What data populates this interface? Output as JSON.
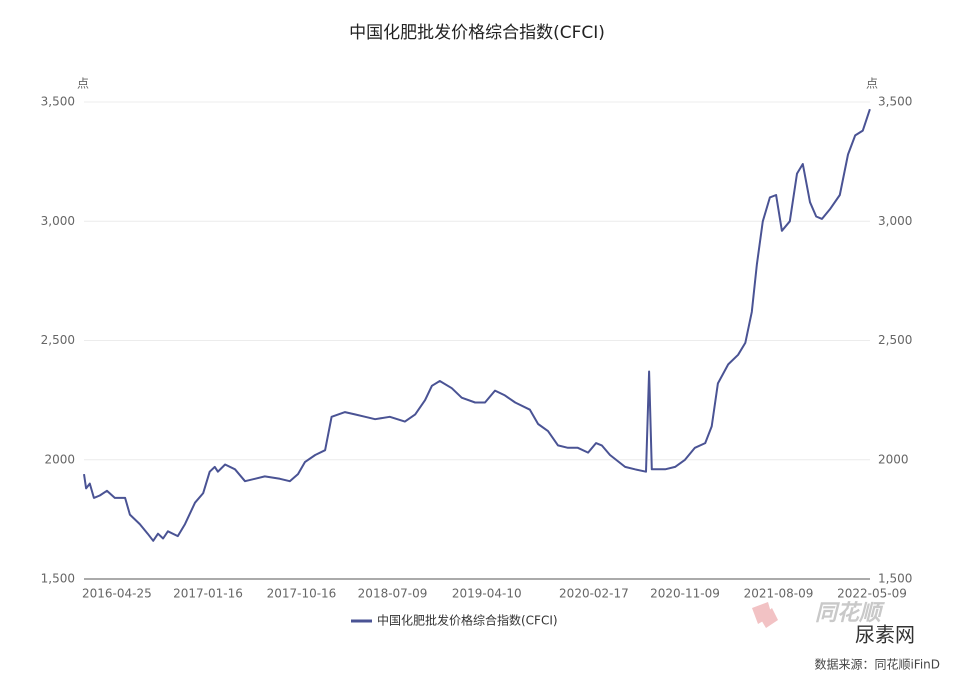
{
  "chart_data": {
    "type": "line",
    "title": "中国化肥批发价格综合指数(CFCI)",
    "y_label": "点",
    "y2_label": "点",
    "source": "数据来源：同花顺iFinD",
    "watermarks": [
      "同花顺",
      "尿素网"
    ],
    "x": [
      "2016-01-20",
      "2016-01-26",
      "2016-02-06",
      "2016-02-18",
      "2016-03-06",
      "2016-03-27",
      "2016-04-19",
      "2016-05-19",
      "2016-06-02",
      "2016-07-01",
      "2016-07-24",
      "2016-08-09",
      "2016-08-23",
      "2016-09-07",
      "2016-09-21",
      "2016-10-20",
      "2016-11-10",
      "2016-12-09",
      "2017-01-02",
      "2017-01-21",
      "2017-02-05",
      "2017-02-14",
      "2017-03-07",
      "2017-04-05",
      "2017-05-04",
      "2017-06-02",
      "2017-07-01",
      "2017-08-14",
      "2017-09-12",
      "2017-10-06",
      "2017-10-26",
      "2017-11-25",
      "2017-12-24",
      "2018-01-12",
      "2018-02-20",
      "2018-03-21",
      "2018-04-20",
      "2018-05-19",
      "2018-07-01",
      "2018-08-14",
      "2018-09-13",
      "2018-10-12",
      "2018-11-01",
      "2018-11-24",
      "2018-12-29",
      "2019-01-27",
      "2019-03-07",
      "2019-04-05",
      "2019-05-04",
      "2019-06-02",
      "2019-07-02",
      "2019-08-14",
      "2019-09-07",
      "2019-10-06",
      "2019-11-04",
      "2019-12-03",
      "2020-01-01",
      "2020-01-31",
      "2020-02-23",
      "2020-03-11",
      "2020-04-04",
      "2020-05-18",
      "2020-06-16",
      "2020-07-18",
      "2020-07-27",
      "2020-08-04",
      "2020-09-12",
      "2020-10-11",
      "2020-11-09",
      "2020-12-08",
      "2021-01-07",
      "2021-01-26",
      "2021-02-13",
      "2021-03-15",
      "2021-04-13",
      "2021-05-04",
      "2021-05-23",
      "2021-06-07",
      "2021-06-24",
      "2021-07-15",
      "2021-08-02",
      "2021-08-19",
      "2021-09-11",
      "2021-10-02",
      "2021-10-19",
      "2021-11-09",
      "2021-11-27",
      "2021-12-14",
      "2022-01-06",
      "2022-02-04",
      "2022-02-28",
      "2022-03-21",
      "2022-04-12",
      "2022-05-03"
    ],
    "series": [
      {
        "name": "中国化肥批发价格综合指数(CFCI)",
        "color": "#4a5394",
        "values": [
          1940,
          1880,
          1900,
          1840,
          1850,
          1870,
          1840,
          1840,
          1770,
          1730,
          1690,
          1660,
          1690,
          1670,
          1700,
          1680,
          1730,
          1820,
          1860,
          1950,
          1970,
          1950,
          1980,
          1960,
          1910,
          1920,
          1930,
          1920,
          1910,
          1940,
          1990,
          2020,
          2040,
          2180,
          2200,
          2190,
          2180,
          2170,
          2180,
          2160,
          2190,
          2250,
          2310,
          2330,
          2300,
          2260,
          2240,
          2240,
          2290,
          2270,
          2240,
          2210,
          2150,
          2120,
          2060,
          2050,
          2050,
          2030,
          2070,
          2060,
          2020,
          1970,
          1960,
          1950,
          2370,
          1960,
          1960,
          1970,
          2000,
          2050,
          2070,
          2140,
          2320,
          2400,
          2440,
          2490,
          2620,
          2820,
          3000,
          3100,
          3110,
          2960,
          3000,
          3200,
          3240,
          3080,
          3020,
          3010,
          3050,
          3110,
          3280,
          3360,
          3380,
          3470
        ]
      }
    ],
    "xlim": [
      "2016-01-20",
      "2022-05-09"
    ],
    "xticks": [
      "2016-04-25",
      "2017-01-16",
      "2017-10-16",
      "2018-07-09",
      "2019-04-10",
      "2020-02-17",
      "2020-11-09",
      "2021-08-09",
      "2022-05-09"
    ],
    "ylim": [
      1500,
      3500
    ],
    "yticks": [
      {
        "value": 1500,
        "label": "1,500"
      },
      {
        "value": 2000,
        "label": "2000"
      },
      {
        "value": 2500,
        "label": "2,500"
      },
      {
        "value": 3000,
        "label": "3,000"
      },
      {
        "value": 3500,
        "label": "3,500"
      }
    ],
    "y2lim": [
      1500,
      3500
    ],
    "y2ticks": [
      {
        "value": 1500,
        "label": "1,500"
      },
      {
        "value": 2000,
        "label": "2000"
      },
      {
        "value": 2500,
        "label": "2,500"
      },
      {
        "value": 3000,
        "label": "3,000"
      },
      {
        "value": 3500,
        "label": "3,500"
      }
    ],
    "grid": true
  }
}
